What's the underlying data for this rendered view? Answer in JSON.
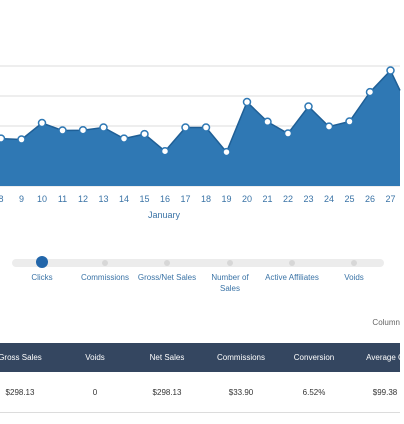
{
  "chart_data": {
    "type": "area",
    "x": [
      "8",
      "9",
      "10",
      "11",
      "12",
      "13",
      "14",
      "15",
      "16",
      "17",
      "18",
      "19",
      "20",
      "21",
      "22",
      "23",
      "24",
      "25",
      "26",
      "27"
    ],
    "values": [
      15.8,
      15.5,
      21.0,
      18.5,
      18.6,
      19.5,
      15.8,
      17.3,
      11.6,
      19.5,
      19.5,
      11.3,
      28.0,
      21.4,
      17.5,
      26.5,
      19.8,
      21.5,
      31.3,
      38.5
    ],
    "month_label": "January",
    "ylim": [
      0,
      40
    ],
    "grid": true,
    "color": "#2f78b4"
  },
  "slider": {
    "items": [
      "Clicks",
      "Commissions",
      "Gross/Net Sales",
      "Number of Sales",
      "Active Affiliates",
      "Voids"
    ],
    "active_index": 0
  },
  "table": {
    "column_note": "Column",
    "headers": [
      "Gross Sales",
      "Voids",
      "Net Sales",
      "Commissions",
      "Conversion",
      "Average C"
    ],
    "row": [
      "$298.13",
      "0",
      "$298.13",
      "$33.90",
      "6.52%",
      "$99.38"
    ]
  },
  "colors": {
    "header_bg": "#344660",
    "accent": "#2266aa",
    "chart_fill": "#2f78b4"
  }
}
